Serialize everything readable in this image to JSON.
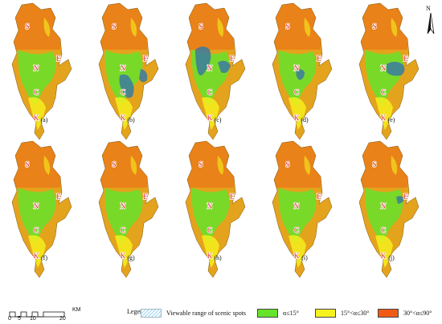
{
  "figure": {
    "panels": [
      {
        "label": "(a)",
        "highlight": "none"
      },
      {
        "label": "(b)",
        "highlight": "center"
      },
      {
        "label": "(c)",
        "highlight": "north-large"
      },
      {
        "label": "(d)",
        "highlight": "center-small"
      },
      {
        "label": "(e)",
        "highlight": "east"
      },
      {
        "label": "(f)",
        "highlight": "none"
      },
      {
        "label": "(g)",
        "highlight": "none"
      },
      {
        "label": "(h)",
        "highlight": "none"
      },
      {
        "label": "(i)",
        "highlight": "none"
      },
      {
        "label": "(j)",
        "highlight": "northeast-small"
      }
    ],
    "spot_labels": [
      "S",
      "N",
      "E",
      "C",
      "K"
    ]
  },
  "north_arrow": {
    "letter": "N"
  },
  "scale_bar": {
    "unit": "KM",
    "ticks": [
      "0",
      "5",
      "10",
      "20"
    ]
  },
  "legend": {
    "title": "Legend",
    "items": [
      {
        "label": "Viewable range of scenic spots",
        "type": "hatch",
        "color": "#8fd0ef"
      },
      {
        "label": "α≤15°",
        "color": "#66e32b"
      },
      {
        "label": "15°<α≤30°",
        "color": "#f5f21e"
      },
      {
        "label": "30°<α≤90°",
        "color": "#f05a14"
      }
    ]
  },
  "colors": {
    "gentle": "#66e32b",
    "moderate": "#f5f21e",
    "steep": "#f05a14",
    "mid": "#e4a31c",
    "viewable": "#3a7aa0",
    "label_text": "#e0201a"
  }
}
